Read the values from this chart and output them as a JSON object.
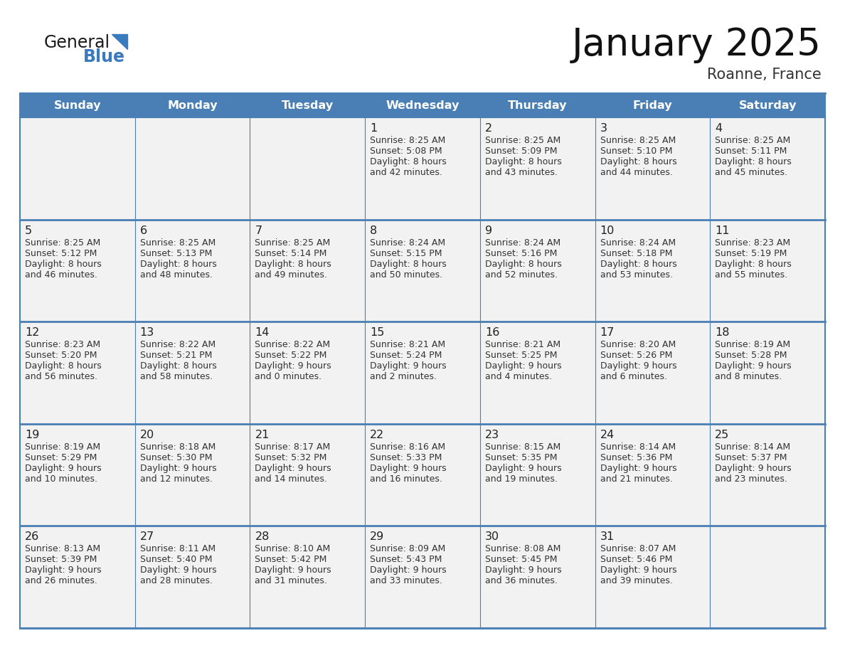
{
  "title": "January 2025",
  "subtitle": "Roanne, France",
  "days_of_week": [
    "Sunday",
    "Monday",
    "Tuesday",
    "Wednesday",
    "Thursday",
    "Friday",
    "Saturday"
  ],
  "header_bg": "#4a7fb5",
  "header_text": "#ffffff",
  "cell_bg": "#f2f2f2",
  "cell_bg_white": "#ffffff",
  "border_color": "#4a7fb5",
  "row_border_color": "#4a7fb5",
  "text_color": "#333333",
  "day_num_color": "#222222",
  "title_color": "#111111",
  "subtitle_color": "#333333",
  "logo_general_color": "#1a1a1a",
  "logo_blue_color": "#3a7abf",
  "calendar_data": [
    [
      {
        "day": "",
        "sunrise": "",
        "sunset": "",
        "daylight": ""
      },
      {
        "day": "",
        "sunrise": "",
        "sunset": "",
        "daylight": ""
      },
      {
        "day": "",
        "sunrise": "",
        "sunset": "",
        "daylight": ""
      },
      {
        "day": "1",
        "sunrise": "8:25 AM",
        "sunset": "5:08 PM",
        "daylight": "8 hours\nand 42 minutes."
      },
      {
        "day": "2",
        "sunrise": "8:25 AM",
        "sunset": "5:09 PM",
        "daylight": "8 hours\nand 43 minutes."
      },
      {
        "day": "3",
        "sunrise": "8:25 AM",
        "sunset": "5:10 PM",
        "daylight": "8 hours\nand 44 minutes."
      },
      {
        "day": "4",
        "sunrise": "8:25 AM",
        "sunset": "5:11 PM",
        "daylight": "8 hours\nand 45 minutes."
      }
    ],
    [
      {
        "day": "5",
        "sunrise": "8:25 AM",
        "sunset": "5:12 PM",
        "daylight": "8 hours\nand 46 minutes."
      },
      {
        "day": "6",
        "sunrise": "8:25 AM",
        "sunset": "5:13 PM",
        "daylight": "8 hours\nand 48 minutes."
      },
      {
        "day": "7",
        "sunrise": "8:25 AM",
        "sunset": "5:14 PM",
        "daylight": "8 hours\nand 49 minutes."
      },
      {
        "day": "8",
        "sunrise": "8:24 AM",
        "sunset": "5:15 PM",
        "daylight": "8 hours\nand 50 minutes."
      },
      {
        "day": "9",
        "sunrise": "8:24 AM",
        "sunset": "5:16 PM",
        "daylight": "8 hours\nand 52 minutes."
      },
      {
        "day": "10",
        "sunrise": "8:24 AM",
        "sunset": "5:18 PM",
        "daylight": "8 hours\nand 53 minutes."
      },
      {
        "day": "11",
        "sunrise": "8:23 AM",
        "sunset": "5:19 PM",
        "daylight": "8 hours\nand 55 minutes."
      }
    ],
    [
      {
        "day": "12",
        "sunrise": "8:23 AM",
        "sunset": "5:20 PM",
        "daylight": "8 hours\nand 56 minutes."
      },
      {
        "day": "13",
        "sunrise": "8:22 AM",
        "sunset": "5:21 PM",
        "daylight": "8 hours\nand 58 minutes."
      },
      {
        "day": "14",
        "sunrise": "8:22 AM",
        "sunset": "5:22 PM",
        "daylight": "9 hours\nand 0 minutes."
      },
      {
        "day": "15",
        "sunrise": "8:21 AM",
        "sunset": "5:24 PM",
        "daylight": "9 hours\nand 2 minutes."
      },
      {
        "day": "16",
        "sunrise": "8:21 AM",
        "sunset": "5:25 PM",
        "daylight": "9 hours\nand 4 minutes."
      },
      {
        "day": "17",
        "sunrise": "8:20 AM",
        "sunset": "5:26 PM",
        "daylight": "9 hours\nand 6 minutes."
      },
      {
        "day": "18",
        "sunrise": "8:19 AM",
        "sunset": "5:28 PM",
        "daylight": "9 hours\nand 8 minutes."
      }
    ],
    [
      {
        "day": "19",
        "sunrise": "8:19 AM",
        "sunset": "5:29 PM",
        "daylight": "9 hours\nand 10 minutes."
      },
      {
        "day": "20",
        "sunrise": "8:18 AM",
        "sunset": "5:30 PM",
        "daylight": "9 hours\nand 12 minutes."
      },
      {
        "day": "21",
        "sunrise": "8:17 AM",
        "sunset": "5:32 PM",
        "daylight": "9 hours\nand 14 minutes."
      },
      {
        "day": "22",
        "sunrise": "8:16 AM",
        "sunset": "5:33 PM",
        "daylight": "9 hours\nand 16 minutes."
      },
      {
        "day": "23",
        "sunrise": "8:15 AM",
        "sunset": "5:35 PM",
        "daylight": "9 hours\nand 19 minutes."
      },
      {
        "day": "24",
        "sunrise": "8:14 AM",
        "sunset": "5:36 PM",
        "daylight": "9 hours\nand 21 minutes."
      },
      {
        "day": "25",
        "sunrise": "8:14 AM",
        "sunset": "5:37 PM",
        "daylight": "9 hours\nand 23 minutes."
      }
    ],
    [
      {
        "day": "26",
        "sunrise": "8:13 AM",
        "sunset": "5:39 PM",
        "daylight": "9 hours\nand 26 minutes."
      },
      {
        "day": "27",
        "sunrise": "8:11 AM",
        "sunset": "5:40 PM",
        "daylight": "9 hours\nand 28 minutes."
      },
      {
        "day": "28",
        "sunrise": "8:10 AM",
        "sunset": "5:42 PM",
        "daylight": "9 hours\nand 31 minutes."
      },
      {
        "day": "29",
        "sunrise": "8:09 AM",
        "sunset": "5:43 PM",
        "daylight": "9 hours\nand 33 minutes."
      },
      {
        "day": "30",
        "sunrise": "8:08 AM",
        "sunset": "5:45 PM",
        "daylight": "9 hours\nand 36 minutes."
      },
      {
        "day": "31",
        "sunrise": "8:07 AM",
        "sunset": "5:46 PM",
        "daylight": "9 hours\nand 39 minutes."
      },
      {
        "day": "",
        "sunrise": "",
        "sunset": "",
        "daylight": ""
      }
    ]
  ]
}
